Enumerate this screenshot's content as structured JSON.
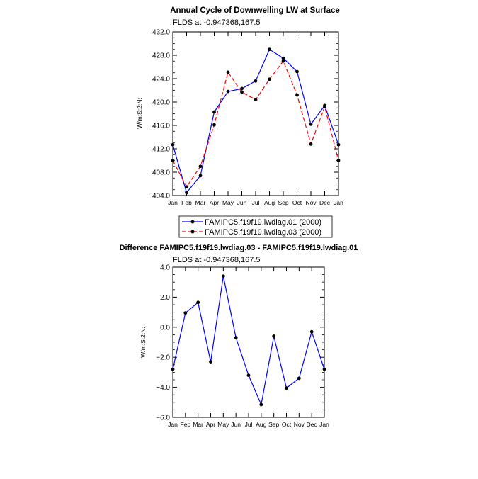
{
  "chart_data": [
    {
      "type": "line",
      "title": "Annual Cycle of Downwelling LW at Surface",
      "subtitle": "FLDS at -0.947368,167.5",
      "ylabel": "W/m:S:2:N:",
      "xlabel": "",
      "categories": [
        "Jan",
        "Feb",
        "Mar",
        "Apr",
        "May",
        "Jun",
        "Jul",
        "Aug",
        "Sep",
        "Oct",
        "Nov",
        "Dec",
        "Jan"
      ],
      "ylim": [
        404.0,
        432.0
      ],
      "yticks": [
        "404.0",
        "408.0",
        "412.0",
        "416.0",
        "420.0",
        "424.0",
        "428.0",
        "432.0"
      ],
      "grid": false,
      "legend_position": "bottom-center",
      "series": [
        {
          "name": "FAMIPC5.f19f19.lwdiag.01 (2000)",
          "color": "#0000ff",
          "dash": "solid",
          "values": [
            412.7,
            404.5,
            407.4,
            418.3,
            421.8,
            422.3,
            423.6,
            429.0,
            427.5,
            425.2,
            416.2,
            419.4,
            412.7
          ]
        },
        {
          "name": "FAMIPC5.f19f19.lwdiag.03 (2000)",
          "color": "#ff0000",
          "dash": "dashed",
          "values": [
            410.0,
            405.5,
            409.0,
            416.1,
            425.1,
            421.7,
            420.4,
            423.9,
            427.0,
            421.2,
            412.8,
            419.2,
            410.0
          ]
        }
      ]
    },
    {
      "type": "line",
      "title": "Difference FAMIPC5.f19f19.lwdiag.03 - FAMIPC5.f19f19.lwdiag.01",
      "subtitle": "FLDS at -0.947368,167.5",
      "ylabel": "W/m:S:2:N:",
      "xlabel": "",
      "categories": [
        "Jan",
        "Feb",
        "Mar",
        "Apr",
        "May",
        "Jun",
        "Jul",
        "Aug",
        "Sep",
        "Oct",
        "Nov",
        "Dec",
        "Jan"
      ],
      "ylim": [
        -6.0,
        4.0
      ],
      "yticks": [
        "-6.0",
        "-4.0",
        "-2.0",
        "0.0",
        "2.0",
        "4.0"
      ],
      "grid": false,
      "series": [
        {
          "name": "Difference",
          "color": "#0000ff",
          "dash": "solid",
          "values": [
            -2.8,
            0.95,
            1.65,
            -2.3,
            3.4,
            -0.7,
            -3.2,
            -5.15,
            -0.6,
            -4.05,
            -3.4,
            -0.3,
            -2.8
          ]
        }
      ]
    }
  ]
}
